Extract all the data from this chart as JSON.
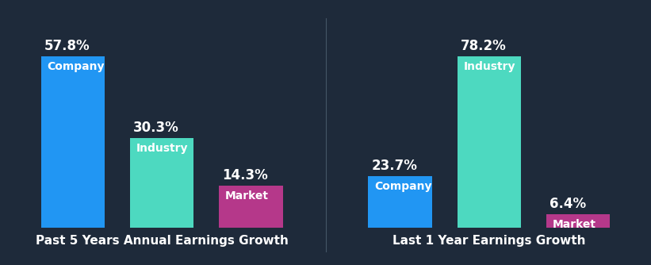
{
  "background_color": "#1e2a3a",
  "chart1": {
    "title": "Past 5 Years Annual Earnings Growth",
    "categories": [
      "Company",
      "Industry",
      "Market"
    ],
    "values": [
      57.8,
      30.3,
      14.3
    ],
    "colors": [
      "#2196f3",
      "#4dd9c0",
      "#b5388a"
    ]
  },
  "chart2": {
    "title": "Last 1 Year Earnings Growth",
    "categories": [
      "Company",
      "Industry",
      "Market"
    ],
    "values": [
      23.7,
      78.2,
      6.4
    ],
    "colors": [
      "#2196f3",
      "#4dd9c0",
      "#b5388a"
    ]
  },
  "label_fontsize": 12,
  "category_fontsize": 10,
  "title_fontsize": 11,
  "title_color": "#ffffff",
  "value_color": "#ffffff",
  "category_color": "#ffffff"
}
